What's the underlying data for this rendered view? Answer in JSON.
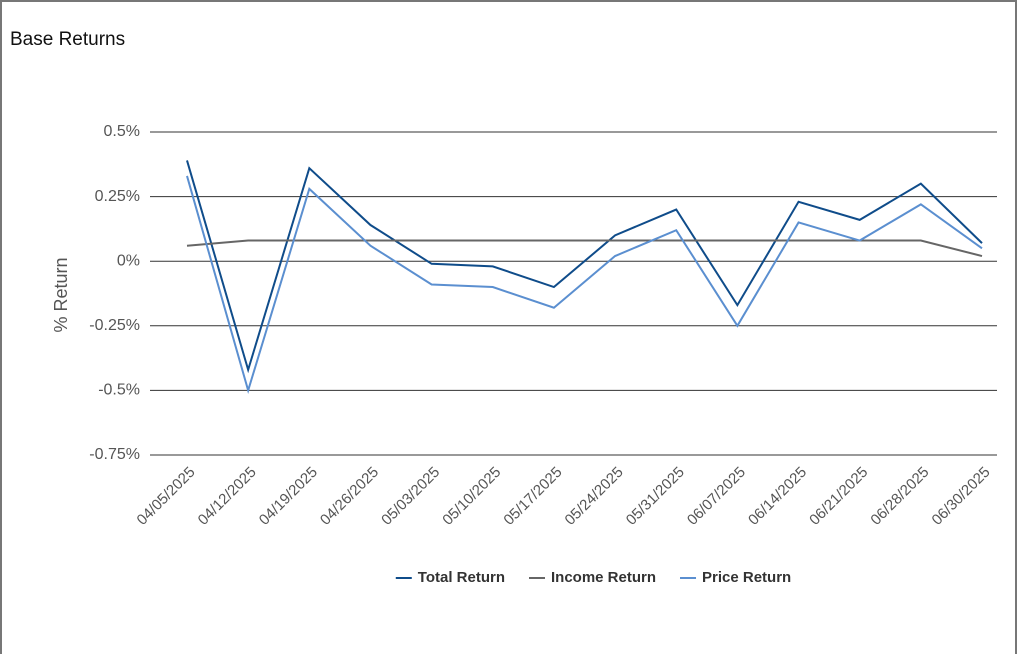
{
  "chart_data": {
    "type": "line",
    "title": "Base Returns",
    "y_label": "% Return",
    "categories": [
      "04/05/2025",
      "04/12/2025",
      "04/19/2025",
      "04/26/2025",
      "05/03/2025",
      "05/10/2025",
      "05/17/2025",
      "05/24/2025",
      "05/31/2025",
      "06/07/2025",
      "06/14/2025",
      "06/21/2025",
      "06/28/2025",
      "06/30/2025"
    ],
    "series": [
      {
        "name": "Total Return",
        "color": "#0f4c8a",
        "values": [
          0.39,
          -0.42,
          0.36,
          0.14,
          -0.01,
          -0.02,
          -0.1,
          0.1,
          0.2,
          -0.17,
          0.23,
          0.16,
          0.3,
          0.07
        ]
      },
      {
        "name": "Income Return",
        "color": "#666666",
        "values": [
          0.06,
          0.08,
          0.08,
          0.08,
          0.08,
          0.08,
          0.08,
          0.08,
          0.08,
          0.08,
          0.08,
          0.08,
          0.08,
          0.02
        ]
      },
      {
        "name": "Price Return",
        "color": "#5b8fd0",
        "values": [
          0.33,
          -0.5,
          0.28,
          0.06,
          -0.09,
          -0.1,
          -0.18,
          0.02,
          0.12,
          -0.25,
          0.15,
          0.08,
          0.22,
          0.05
        ]
      }
    ],
    "ylim": [
      -0.75,
      0.5
    ],
    "yticks": [
      {
        "value": 0.5,
        "label": "0.5%"
      },
      {
        "value": 0.25,
        "label": "0.25%"
      },
      {
        "value": 0,
        "label": "0%"
      },
      {
        "value": -0.25,
        "label": "-0.25%"
      },
      {
        "value": -0.5,
        "label": "-0.5%"
      },
      {
        "value": -0.75,
        "label": "-0.75%"
      }
    ],
    "grid": true,
    "legend": "bottom"
  }
}
